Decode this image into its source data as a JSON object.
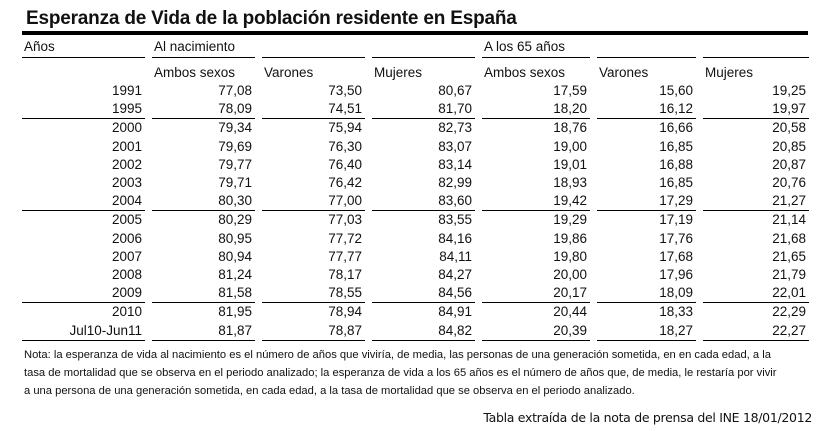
{
  "title": "Esperanza de Vida de la población residente en España",
  "headers": {
    "years": "Años",
    "birth": "Al nacimiento",
    "age65": "A los 65 años",
    "sub": [
      "Ambos sexos",
      "Varones",
      "Mujeres",
      "Ambos sexos",
      "Varones",
      "Mujeres"
    ]
  },
  "rows": [
    {
      "year": "1991",
      "values": [
        "77,08",
        "73,50",
        "80,67",
        "17,59",
        "15,60",
        "19,25"
      ]
    },
    {
      "year": "1995",
      "values": [
        "78,09",
        "74,51",
        "81,70",
        "18,20",
        "16,12",
        "19,97"
      ]
    },
    {
      "year": "2000",
      "values": [
        "79,34",
        "75,94",
        "82,73",
        "18,76",
        "16,66",
        "20,58"
      ]
    },
    {
      "year": "2001",
      "values": [
        "79,69",
        "76,30",
        "83,07",
        "19,00",
        "16,85",
        "20,85"
      ]
    },
    {
      "year": "2002",
      "values": [
        "79,77",
        "76,40",
        "83,14",
        "19,01",
        "16,88",
        "20,87"
      ]
    },
    {
      "year": "2003",
      "values": [
        "79,71",
        "76,42",
        "82,99",
        "18,93",
        "16,85",
        "20,76"
      ]
    },
    {
      "year": "2004",
      "values": [
        "80,30",
        "77,00",
        "83,60",
        "19,42",
        "17,29",
        "21,27"
      ]
    },
    {
      "year": "2005",
      "values": [
        "80,29",
        "77,03",
        "83,55",
        "19,29",
        "17,19",
        "21,14"
      ]
    },
    {
      "year": "2006",
      "values": [
        "80,95",
        "77,72",
        "84,16",
        "19,86",
        "17,76",
        "21,68"
      ]
    },
    {
      "year": "2007",
      "values": [
        "80,94",
        "77,77",
        "84,11",
        "19,80",
        "17,68",
        "21,65"
      ]
    },
    {
      "year": "2008",
      "values": [
        "81,24",
        "78,17",
        "84,27",
        "20,00",
        "17,96",
        "21,79"
      ]
    },
    {
      "year": "2009",
      "values": [
        "81,58",
        "78,55",
        "84,56",
        "20,17",
        "18,09",
        "22,01"
      ]
    },
    {
      "year": "2010",
      "values": [
        "81,95",
        "78,94",
        "84,91",
        "20,44",
        "18,33",
        "22,29"
      ]
    },
    {
      "year": "Jul10-Jun11",
      "values": [
        "81,87",
        "78,87",
        "84,82",
        "20,39",
        "18,27",
        "22,27"
      ]
    }
  ],
  "note": "Nota: la esperanza de vida al nacimiento es el número de años que viviría, de media, las personas de una generación sometida, en en cada edad, a la tasa de mortalidad que se observa en el periodo analizado; la esperanza de vida a los 65 años es el número de  años que, de media, le restaría por vivir a una persona de una generación sometida, en cada edad, a la tasa de mortalidad que se observa en el periodo analizado.",
  "credit": "Tabla extraída de la nota de prensa del INE 18/01/2012"
}
